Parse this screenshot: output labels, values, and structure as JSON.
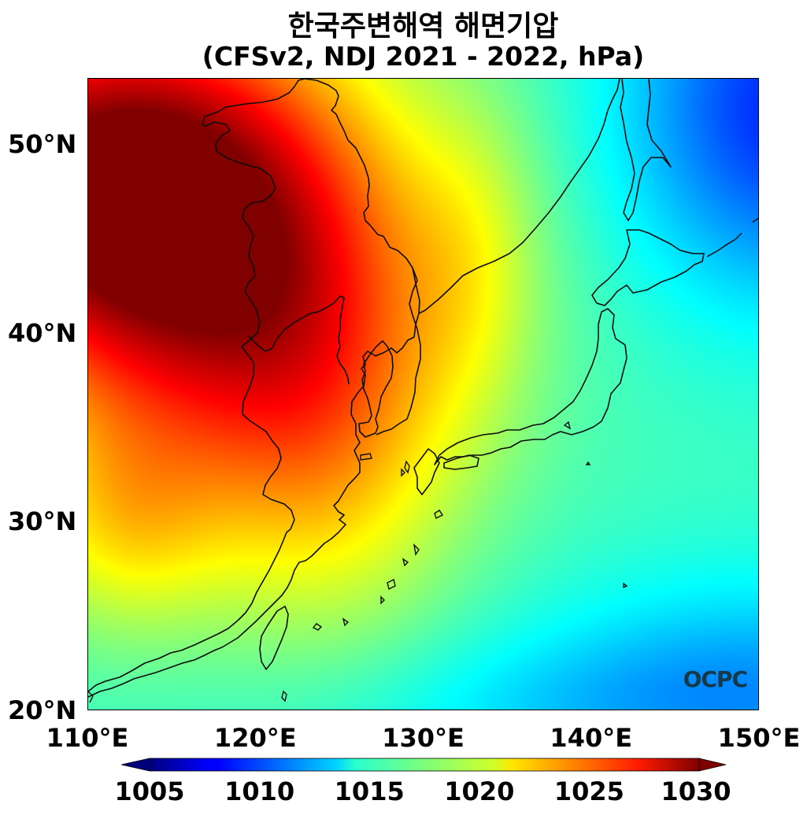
{
  "title": {
    "line1": "한국주변해역 해면기압",
    "line2": "(CFSv2, NDJ 2021 - 2022, hPa)"
  },
  "map": {
    "lon_range": [
      110,
      150
    ],
    "lat_range": [
      20,
      53.5
    ],
    "lat_ticks": [
      {
        "value": 50,
        "label": "50°N"
      },
      {
        "value": 40,
        "label": "40°N"
      },
      {
        "value": 30,
        "label": "30°N"
      },
      {
        "value": 20,
        "label": "20°N"
      }
    ],
    "lon_ticks": [
      {
        "value": 110,
        "label": "110°E"
      },
      {
        "value": 120,
        "label": "120°E"
      },
      {
        "value": 130,
        "label": "130°E"
      },
      {
        "value": 140,
        "label": "140°E"
      },
      {
        "value": 150,
        "label": "150°E"
      }
    ],
    "watermark": "OCPC",
    "colormap": "jet"
  },
  "colorbar": {
    "range": [
      1005,
      1030
    ],
    "ticks": [
      {
        "value": 1005,
        "label": "1005"
      },
      {
        "value": 1010,
        "label": "1010"
      },
      {
        "value": 1015,
        "label": "1015"
      },
      {
        "value": 1020,
        "label": "1020"
      },
      {
        "value": 1025,
        "label": "1025"
      },
      {
        "value": 1030,
        "label": "1030"
      }
    ],
    "extend": "both"
  }
}
